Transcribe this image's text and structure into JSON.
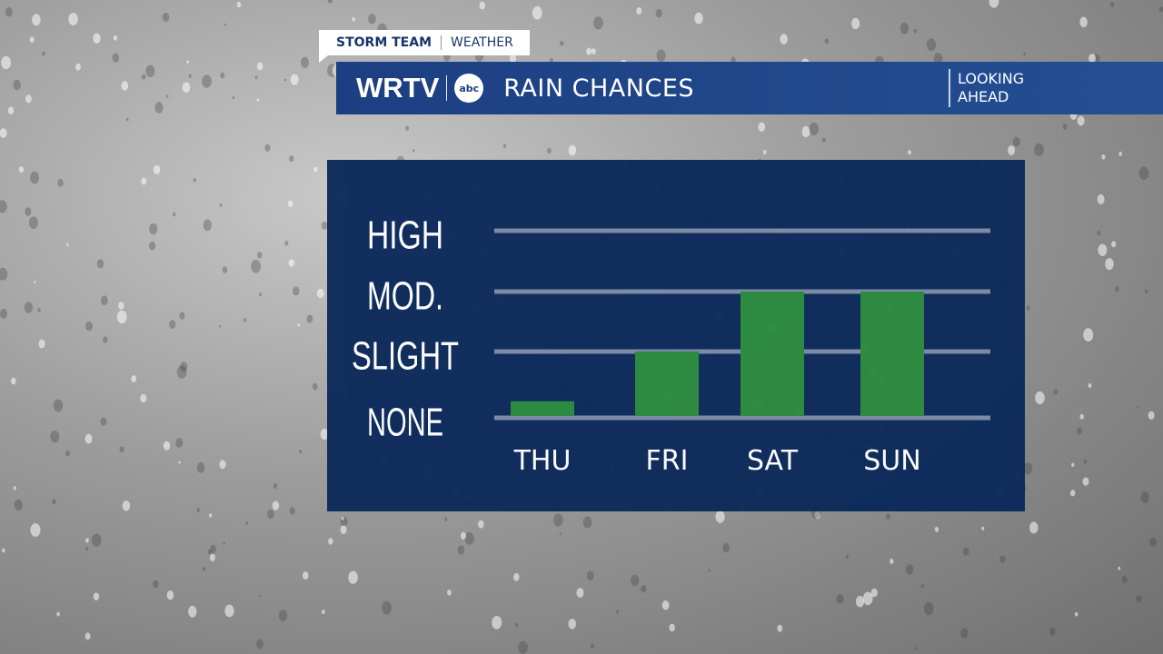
{
  "tag": {
    "brand": "STORM TEAM",
    "sub": "WEATHER"
  },
  "header": {
    "station": "WRTV",
    "network_logo": "abc",
    "title": "RAIN CHANCES",
    "side_line1": "LOOKING",
    "side_line2": "AHEAD"
  },
  "colors": {
    "panel": "#0c2a5b",
    "bar": "#2a8a3e",
    "header": "#1c3f82",
    "grid": "#7c8aa6"
  },
  "chart_data": {
    "type": "bar",
    "title": "RAIN CHANCES",
    "categories": [
      "THU",
      "FRI",
      "SAT",
      "SUN"
    ],
    "y_levels": [
      "NONE",
      "SLIGHT",
      "MOD.",
      "HIGH"
    ],
    "values": [
      0.25,
      1.0,
      2.0,
      2.0
    ],
    "ylim": [
      0,
      3
    ],
    "grid": true,
    "legend": "none"
  }
}
